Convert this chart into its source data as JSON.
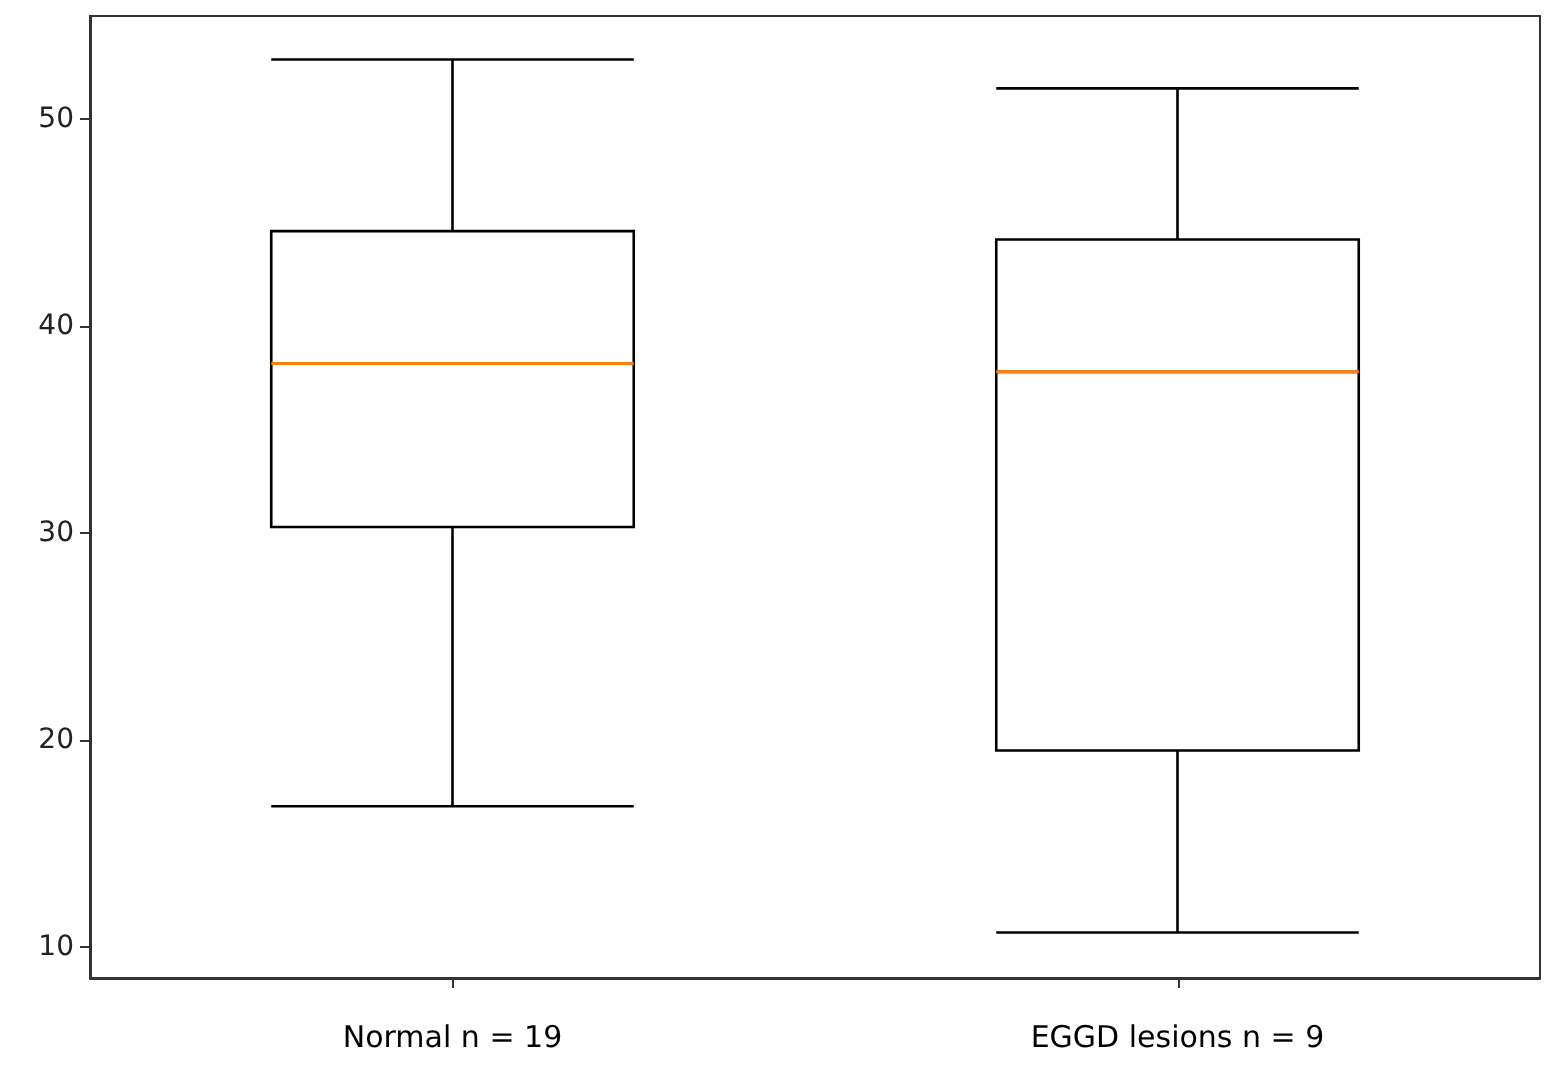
{
  "chart_data": {
    "type": "box",
    "categories": [
      "Normal n = 19",
      "EGGD lesions n = 9"
    ],
    "series": [
      {
        "color": "#000000",
        "boxes": [
          {
            "low": 16.8,
            "q1": 30.3,
            "median": 38.2,
            "q3": 44.6,
            "high": 52.9
          },
          {
            "low": 10.7,
            "q1": 19.5,
            "median": 37.8,
            "q3": 44.2,
            "high": 51.5
          }
        ]
      }
    ],
    "ylim": [
      8.5,
      55.0
    ],
    "yticks": [
      10,
      20,
      30,
      40,
      50
    ],
    "grid": false
  }
}
